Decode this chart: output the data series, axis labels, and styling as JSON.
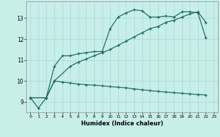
{
  "xlabel": "Humidex (Indice chaleur)",
  "background_color": "#c8eeea",
  "grid_color": "#a8d8d0",
  "line_color": "#1a6b5a",
  "xlim": [
    -0.5,
    23.5
  ],
  "ylim": [
    8.5,
    13.8
  ],
  "xticks": [
    0,
    1,
    2,
    3,
    4,
    5,
    6,
    7,
    8,
    9,
    10,
    11,
    12,
    13,
    14,
    15,
    16,
    17,
    18,
    19,
    20,
    21,
    22,
    23
  ],
  "yticks": [
    9,
    10,
    11,
    12,
    13
  ],
  "line1_x": [
    0,
    1,
    2,
    3,
    4,
    5,
    6,
    7,
    8,
    9,
    10,
    11,
    12,
    13,
    14,
    15,
    16,
    17,
    18,
    19,
    20,
    21,
    22
  ],
  "line1_y": [
    9.2,
    8.7,
    9.2,
    10.7,
    11.2,
    11.2,
    11.3,
    11.35,
    11.4,
    11.4,
    12.5,
    13.05,
    13.25,
    13.4,
    13.35,
    13.05,
    13.05,
    13.1,
    13.05,
    13.3,
    13.3,
    13.25,
    12.05
  ],
  "line2_x": [
    0,
    2,
    3,
    5,
    6,
    7,
    8,
    9,
    10,
    11,
    12,
    13,
    14,
    15,
    16,
    17,
    18,
    19,
    20,
    21,
    22
  ],
  "line2_y": [
    9.2,
    9.2,
    10.0,
    10.7,
    10.9,
    11.05,
    11.2,
    11.35,
    11.5,
    11.7,
    11.9,
    12.1,
    12.3,
    12.5,
    12.6,
    12.8,
    12.9,
    13.05,
    13.2,
    13.3,
    12.8
  ],
  "line3_x": [
    0,
    2,
    3,
    4,
    5,
    6,
    7,
    8,
    9,
    10,
    11,
    12,
    13,
    14,
    15,
    16,
    17,
    18,
    19,
    20,
    21,
    22
  ],
  "line3_y": [
    9.2,
    9.2,
    10.0,
    9.95,
    9.9,
    9.85,
    9.82,
    9.8,
    9.77,
    9.73,
    9.7,
    9.67,
    9.62,
    9.58,
    9.54,
    9.5,
    9.47,
    9.44,
    9.41,
    9.38,
    9.35,
    9.33
  ]
}
